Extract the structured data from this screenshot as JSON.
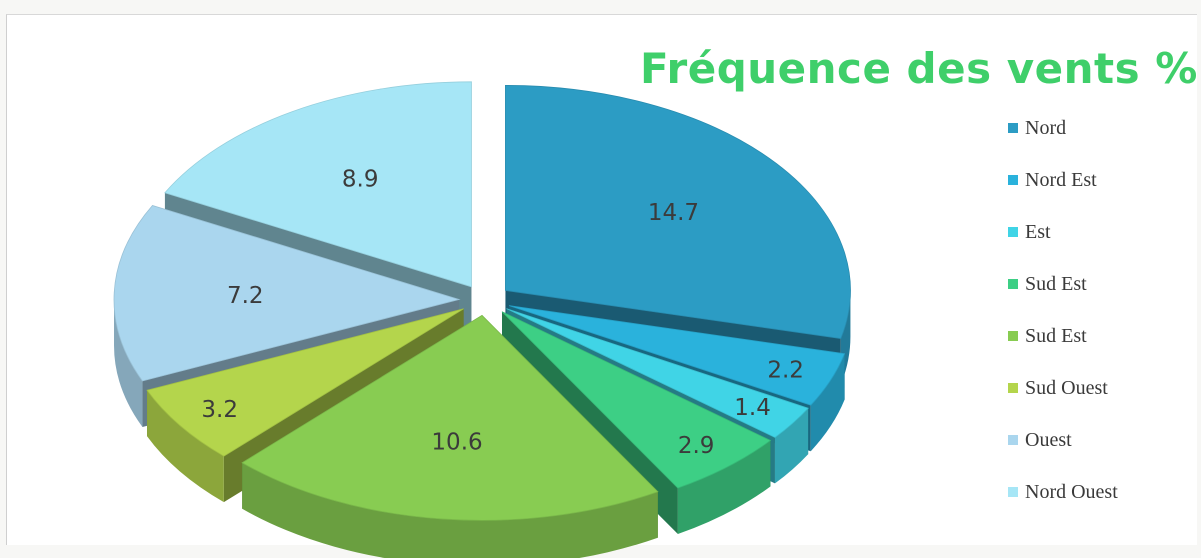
{
  "chart_data": {
    "type": "pie",
    "title": "Fréquence des vents %",
    "slices": [
      {
        "name": "Nord",
        "value": 14.7,
        "label": "14.7",
        "color": "#2c9cc4"
      },
      {
        "name": "Nord Est",
        "value": 2.2,
        "label": "2.2",
        "color": "#2ab2dc"
      },
      {
        "name": "Est",
        "value": 1.4,
        "label": "1.4",
        "color": "#40d4e6"
      },
      {
        "name": "Sud Est",
        "value": 2.9,
        "label": "2.9",
        "color": "#3dcf85"
      },
      {
        "name": "Sud Est",
        "value": 10.6,
        "label": "10.6",
        "color": "#88cc52"
      },
      {
        "name": "Sud Ouest",
        "value": 3.2,
        "label": "3.2",
        "color": "#b4d54c"
      },
      {
        "name": "Ouest",
        "value": 7.2,
        "label": "7.2",
        "color": "#aad6ee"
      },
      {
        "name": "Nord Ouest",
        "value": 8.9,
        "label": "8.9",
        "color": "#a6e6f6"
      }
    ],
    "legend_position": "right",
    "exploded": true,
    "three_d": true
  }
}
